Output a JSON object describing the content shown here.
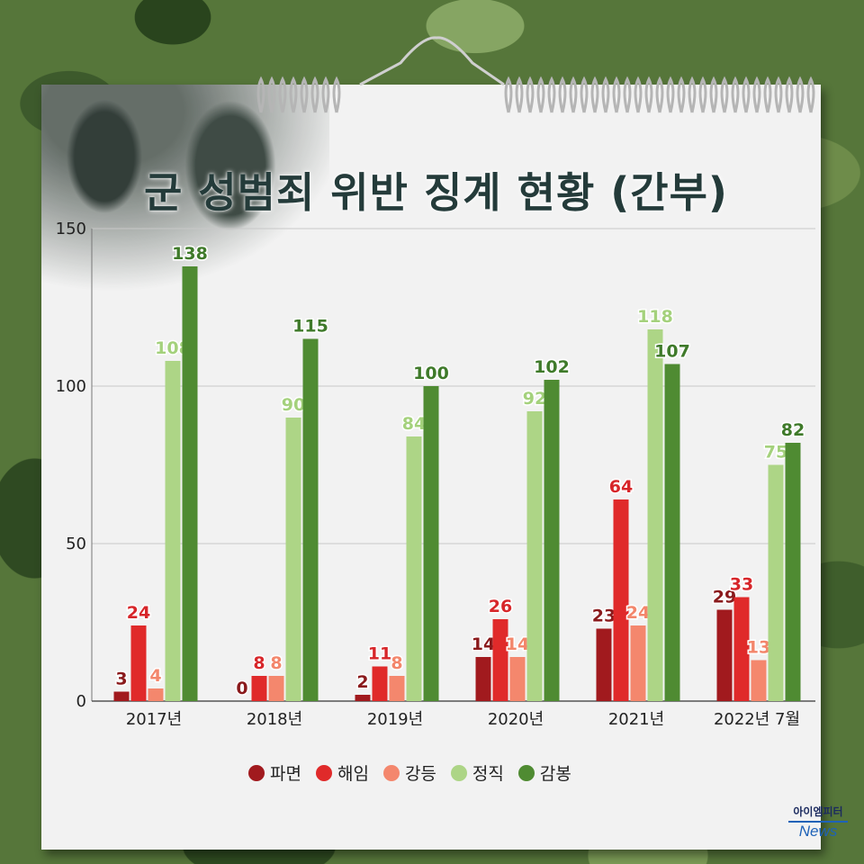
{
  "chart_data": {
    "type": "bar",
    "title": "군 성범죄 위반 징계 현황 (간부)",
    "categories": [
      "2017년",
      "2018년",
      "2019년",
      "2020년",
      "2021년",
      "2022년 7월"
    ],
    "series": [
      {
        "name": "파면",
        "color": "#a11a1e",
        "label_color": "#8a1a1c",
        "values": [
          3,
          0,
          2,
          14,
          23,
          29
        ]
      },
      {
        "name": "해임",
        "color": "#e02a2a",
        "label_color": "#d7262a",
        "values": [
          24,
          8,
          11,
          26,
          64,
          33
        ]
      },
      {
        "name": "강등",
        "color": "#f4876d",
        "label_color": "#f3866b",
        "values": [
          4,
          8,
          8,
          14,
          24,
          13
        ]
      },
      {
        "name": "정직",
        "color": "#add586",
        "label_color": "#a4d17c",
        "values": [
          108,
          90,
          84,
          92,
          118,
          75
        ]
      },
      {
        "name": "감봉",
        "color": "#4f8b32",
        "label_color": "#3f7a2a",
        "values": [
          138,
          115,
          100,
          102,
          107,
          82
        ]
      }
    ],
    "yticks": [
      0,
      50,
      100,
      150
    ],
    "ylim": [
      0,
      150
    ],
    "grid": true,
    "legend_position": "bottom-center"
  },
  "logo": {
    "top": "아이엠피터",
    "bottom": "News"
  }
}
